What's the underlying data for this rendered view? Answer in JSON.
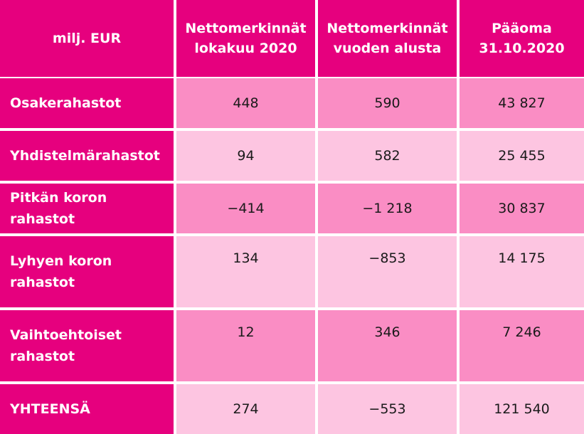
{
  "colors": {
    "header": "#e6007e",
    "row_mid": "#fa8dc4",
    "row_light": "#fdc5e1",
    "text": "#1a1a1a"
  },
  "chart_data": {
    "type": "table",
    "columns": [
      "milj. EUR",
      "Nettomerkinnät\nlokakuu 2020",
      "Nettomerkinnät\nvuoden alusta",
      "Pääoma\n31.10.2020"
    ],
    "rows": [
      {
        "label": "Osakerahastot",
        "values": [
          "448",
          "590",
          "43 827"
        ]
      },
      {
        "label": "Yhdistelmärahastot",
        "values": [
          "94",
          "582",
          "25 455"
        ]
      },
      {
        "label": "Pitkän koron rahastot",
        "values": [
          "−414",
          "−1 218",
          "30 837"
        ]
      },
      {
        "label": "Lyhyen koron\nrahastot",
        "values": [
          "134",
          "−853",
          "14 175"
        ]
      },
      {
        "label": "Vaihtoehtoiset\nrahastot",
        "values": [
          "12",
          "346",
          "7 246"
        ]
      },
      {
        "label": "YHTEENSÄ",
        "values": [
          "274",
          "−553",
          "121 540"
        ]
      }
    ]
  }
}
